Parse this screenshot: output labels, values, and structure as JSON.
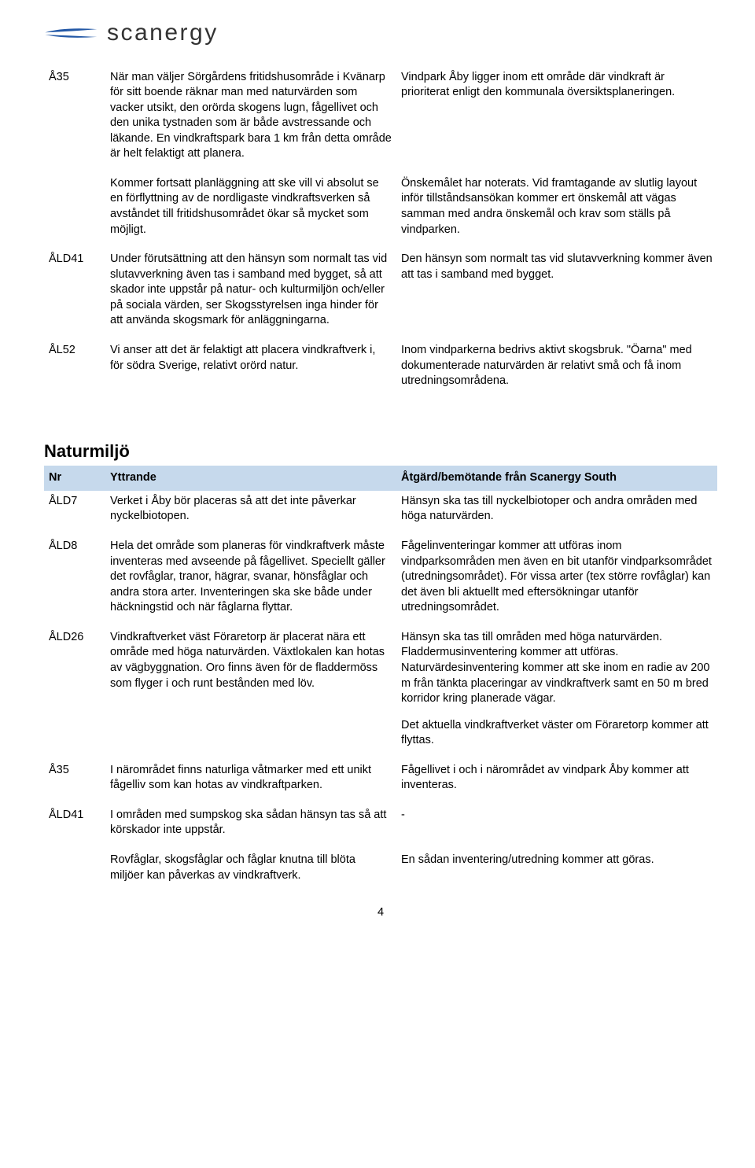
{
  "logo": {
    "text": "scanergy"
  },
  "colors": {
    "header_bg": "#c6d9ec",
    "text": "#000000",
    "page_bg": "#ffffff"
  },
  "typography": {
    "body_font": "Arial",
    "body_size_pt": 11,
    "heading_size_pt": 17
  },
  "top_table": {
    "rows": [
      {
        "id": "Å35",
        "yttrande": [
          "När man väljer Sörgårdens fritidshusområde i Kvänarp för sitt boende räknar man med naturvärden som vacker utsikt, den orörda skogens lugn, fågellivet och den unika tystnaden som är både avstressande och läkande. En vindkraftspark bara 1 km från detta område är helt felaktigt att planera.",
          "Kommer fortsatt planläggning att ske vill vi absolut se en förflyttning av de nordligaste vindkraftsverken så avståndet till fritidshusområdet ökar så mycket som möjligt."
        ],
        "atgard": [
          "Vindpark Åby ligger inom ett område där vindkraft är prioriterat enligt den kommunala översiktsplaneringen.",
          "Önskemålet har noterats. Vid framtagande av slutlig layout inför tillståndsansökan kommer ert önskemål att vägas samman med andra önskemål och krav som ställs på vindparken."
        ]
      },
      {
        "id": "ÅLD41",
        "yttrande": [
          "Under förutsättning att den hänsyn som normalt tas vid slutavverkning även tas i samband med bygget, så att skador inte uppstår på natur- och kulturmiljön och/eller på sociala värden, ser Skogsstyrelsen inga hinder för att använda skogsmark för anläggningarna."
        ],
        "atgard": [
          "Den hänsyn som normalt tas vid slutavverkning kommer även att tas i samband med bygget."
        ]
      },
      {
        "id": "ÅL52",
        "yttrande": [
          "Vi anser att det är felaktigt att placera vindkraftverk i, för södra Sverige, relativt orörd natur."
        ],
        "atgard": [
          "Inom vindparkerna bedrivs aktivt skogsbruk. \"Öarna\" med dokumenterade naturvärden är relativt små och få inom utredningsområdena."
        ]
      }
    ]
  },
  "section": {
    "title": "Naturmiljö",
    "header": {
      "nr": "Nr",
      "yttrande": "Yttrande",
      "atgard": "Åtgärd/bemötande från Scanergy South"
    },
    "rows": [
      {
        "id": "ÅLD7",
        "yttrande": [
          "Verket i Åby bör placeras så att det inte påverkar nyckelbiotopen."
        ],
        "atgard": [
          "Hänsyn ska tas till nyckelbiotoper och andra områden med höga naturvärden."
        ]
      },
      {
        "id": "ÅLD8",
        "yttrande": [
          "Hela det område som planeras för vindkraftverk måste inventeras med avseende på fågellivet. Speciellt gäller det rovfåglar, tranor, hägrar, svanar, hönsfåglar och andra stora arter. Inventeringen ska ske både under häckningstid och när fåglarna flyttar."
        ],
        "atgard": [
          "Fågelinventeringar kommer att utföras inom vindparksområden men även en bit utanför vindparksområdet (utredningsområdet). För vissa arter (tex större rovfåglar) kan det även bli aktuellt med eftersökningar utanför utredningsområdet."
        ]
      },
      {
        "id": "ÅLD26",
        "yttrande": [
          "Vindkraftverket väst Föraretorp är placerat nära ett område med höga naturvärden. Växtlokalen kan hotas av vägbyggnation. Oro finns även för de fladdermöss som flyger i och runt bestånden med löv."
        ],
        "atgard": [
          "Hänsyn ska tas till områden med höga naturvärden. Fladdermusinventering kommer att utföras. Naturvärdesinventering kommer att ske inom en radie av 200 m från tänkta placeringar av vindkraftverk samt en 50 m bred korridor kring planerade vägar.",
          "Det aktuella vindkraftverket väster om Föraretorp kommer att flyttas."
        ]
      },
      {
        "id": "Å35",
        "yttrande": [
          "I närområdet finns naturliga våtmarker med ett unikt fågelliv som kan hotas av vindkraftparken."
        ],
        "atgard": [
          "Fågellivet i och i närområdet av vindpark Åby kommer att inventeras."
        ]
      },
      {
        "id": "ÅLD41",
        "yttrande": [
          "I områden med sumpskog ska sådan hänsyn tas så att körskador inte uppstår.",
          "Rovfåglar, skogsfåglar och fåglar knutna till blöta miljöer kan påverkas av vindkraftverk."
        ],
        "atgard": [
          "-",
          "En sådan inventering/utredning kommer att göras."
        ]
      }
    ]
  },
  "page_number": "4"
}
